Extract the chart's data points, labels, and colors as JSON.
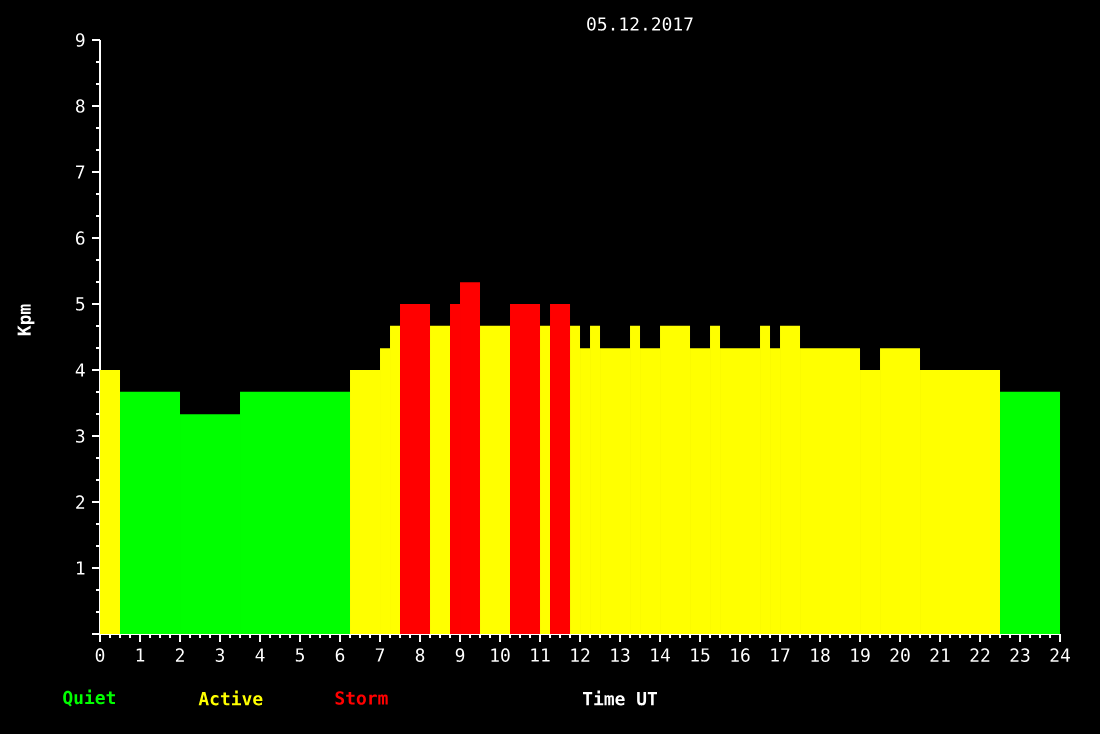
{
  "chart_data": {
    "type": "histogram",
    "title": "05.12.2017",
    "xlabel": "Time UT",
    "ylabel": "Kpm",
    "bins": [
      0,
      0.5,
      2,
      3.5,
      6.25,
      7,
      7.25,
      7.5,
      8.25,
      8.75,
      9,
      9.5,
      10.25,
      11,
      11.25,
      11.75,
      12,
      12.25,
      12.5,
      13.25,
      13.5,
      14,
      14.75,
      15.25,
      15.5,
      16.5,
      16.75,
      17,
      17.5,
      19,
      19.5,
      20.5,
      22.5,
      24
    ],
    "series": [
      {
        "name": "Quiet",
        "color": "#00ff00",
        "values": [
          null,
          3.67,
          3.33,
          3.67,
          null,
          null,
          null,
          null,
          null,
          null,
          null,
          null,
          null,
          null,
          null,
          null,
          null,
          null,
          null,
          null,
          null,
          null,
          null,
          null,
          null,
          null,
          null,
          null,
          null,
          null,
          null,
          null,
          3.67
        ]
      },
      {
        "name": "Active",
        "color": "#ffff00",
        "values": [
          4,
          null,
          null,
          null,
          4,
          4.33,
          4.67,
          null,
          4.67,
          null,
          null,
          4.67,
          null,
          4.67,
          null,
          4.67,
          4.33,
          4.67,
          4.33,
          4.67,
          4.33,
          4.67,
          4.33,
          4.67,
          4.33,
          4.67,
          4.33,
          4.67,
          4.33,
          4,
          4.33,
          4,
          null
        ]
      },
      {
        "name": "Storm",
        "color": "#ff0000",
        "values": [
          null,
          null,
          null,
          null,
          null,
          null,
          null,
          5,
          null,
          5,
          5.33,
          null,
          5,
          null,
          5,
          null,
          null,
          null,
          null,
          null,
          null,
          null,
          null,
          null,
          null,
          null,
          null,
          null,
          null,
          null,
          null,
          null,
          null
        ]
      }
    ],
    "xlim": [
      0,
      24
    ],
    "ylim": [
      0,
      9
    ],
    "xticks": [
      0,
      1,
      2,
      3,
      4,
      5,
      6,
      7,
      8,
      9,
      10,
      11,
      12,
      13,
      14,
      15,
      16,
      17,
      18,
      19,
      20,
      21,
      22,
      23,
      24
    ],
    "yticks": [
      {
        "value": 0,
        "label": null
      },
      1,
      2,
      3,
      4,
      5,
      6,
      7,
      8,
      9
    ],
    "legend": "bottom left",
    "grid": false
  }
}
